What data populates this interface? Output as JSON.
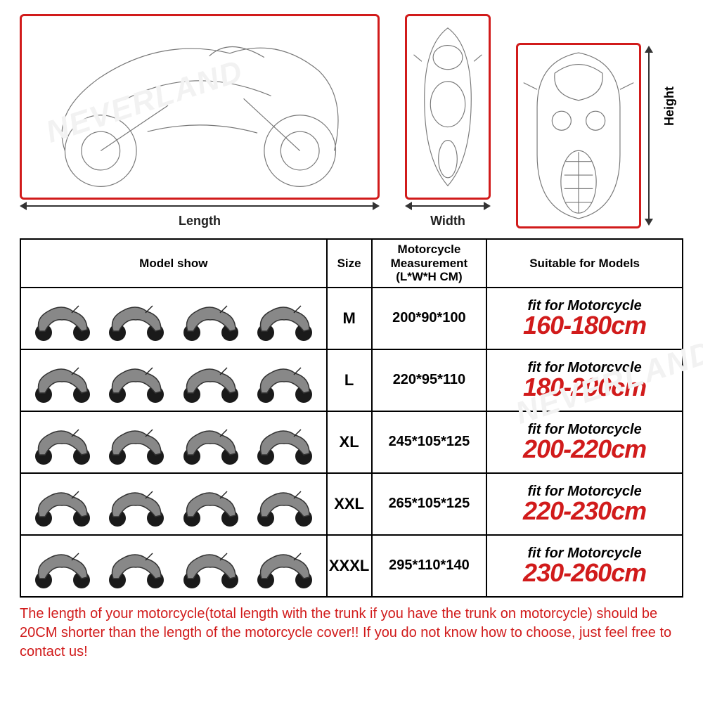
{
  "watermark": "NEVERLAND",
  "diagrams": {
    "length_label": "Length",
    "width_label": "Width",
    "height_label": "Height",
    "outline_color": "#d11b1b",
    "line_color": "#777777"
  },
  "table": {
    "headers": {
      "model_show": "Model show",
      "size": "Size",
      "measurement": "Motorcycle\nMeasurement\n(L*W*H CM)",
      "suitable": "Suitable for Models"
    },
    "fit_prefix": "fit for Motorcycle",
    "colors": {
      "border": "#000000",
      "fit_text": "#000000",
      "range_text": "#d11b1b"
    },
    "rows": [
      {
        "size": "M",
        "measurement": "200*90*100",
        "range": "160-180cm",
        "bike_count": 4,
        "bike_colors": [
          "#c9bfa8",
          "#1f8a28",
          "#222222",
          "#444444"
        ]
      },
      {
        "size": "L",
        "measurement": "220*95*110",
        "range": "180-200cm",
        "bike_count": 4,
        "bike_colors": [
          "#6e6e6e",
          "#2c2c2c",
          "#1d1d1d",
          "#2c2c2c"
        ]
      },
      {
        "size": "XL",
        "measurement": "245*105*125",
        "range": "200-220cm",
        "bike_count": 4,
        "bike_colors": [
          "#2a2a2a",
          "#1858c4",
          "#2a2a2a",
          "#2a3aa0"
        ]
      },
      {
        "size": "XXL",
        "measurement": "265*105*125",
        "range": "220-230cm",
        "bike_count": 4,
        "bike_colors": [
          "#2a2a2a",
          "#2a2a2a",
          "#333333",
          "#333333"
        ]
      },
      {
        "size": "XXXL",
        "measurement": "295*110*140",
        "range": "230-260cm",
        "bike_count": 4,
        "bike_colors": [
          "#b02020",
          "#1c1c1c",
          "#1c1c1c",
          "#1c1c1c"
        ]
      }
    ]
  },
  "footnote": "The length of your motorcycle(total length with the trunk if you have the trunk on motorcycle) should be 20CM shorter than the length of the motorcycle cover!! If you do not know how to choose, just feel free to contact us!"
}
